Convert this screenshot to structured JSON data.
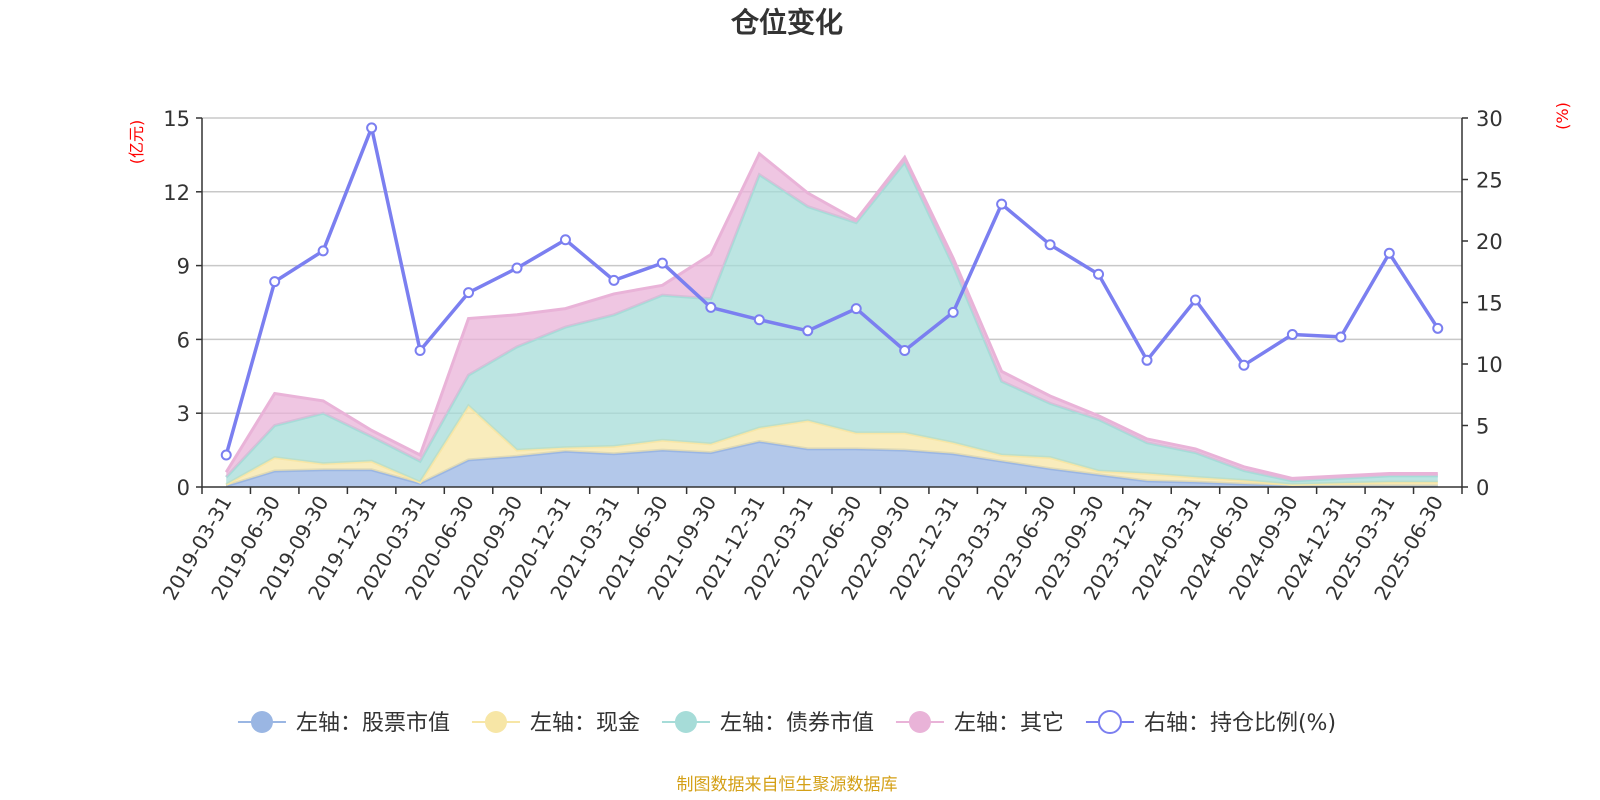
{
  "chart_data": {
    "type": "area",
    "title": "仓位变化",
    "source_note": "制图数据来自恒生聚源数据库",
    "left_axis": {
      "unit": "(亿元)",
      "min": 0,
      "max": 15,
      "ticks": [
        "0",
        "3",
        "6",
        "9",
        "12",
        "15"
      ]
    },
    "right_axis": {
      "unit": "(%)",
      "min": 0,
      "max": 30,
      "ticks": [
        "0",
        "5",
        "10",
        "15",
        "20",
        "25",
        "30"
      ]
    },
    "grid": true,
    "legend_position": "bottom",
    "categories": [
      "2019-03-31",
      "2019-06-30",
      "2019-09-30",
      "2019-12-31",
      "2020-03-31",
      "2020-06-30",
      "2020-09-30",
      "2020-12-31",
      "2021-03-31",
      "2021-06-30",
      "2021-09-30",
      "2021-12-31",
      "2022-03-31",
      "2022-06-30",
      "2022-09-30",
      "2022-12-31",
      "2023-03-31",
      "2023-06-30",
      "2023-09-30",
      "2023-12-31",
      "2024-03-31",
      "2024-06-30",
      "2024-09-30",
      "2024-12-31",
      "2025-03-31",
      "2025-06-30"
    ],
    "series": [
      {
        "name": "左轴：股票市值",
        "axis": "left",
        "stacked": true,
        "color": "#9ab6e3",
        "values": [
          0.05,
          0.65,
          0.7,
          0.7,
          0.15,
          1.1,
          1.25,
          1.45,
          1.35,
          1.5,
          1.4,
          1.85,
          1.55,
          1.55,
          1.5,
          1.35,
          1.05,
          0.75,
          0.5,
          0.25,
          0.2,
          0.12,
          0.05,
          0.05,
          0.05,
          0.05
        ]
      },
      {
        "name": "左轴：现金",
        "axis": "left",
        "stacked": true,
        "color": "#f7e6a6",
        "values": [
          0.05,
          0.55,
          0.25,
          0.35,
          0.05,
          2.2,
          0.25,
          0.15,
          0.3,
          0.4,
          0.35,
          0.55,
          1.15,
          0.65,
          0.7,
          0.45,
          0.25,
          0.45,
          0.15,
          0.3,
          0.2,
          0.15,
          0.05,
          0.1,
          0.15,
          0.15
        ]
      },
      {
        "name": "左轴：债券市值",
        "axis": "left",
        "stacked": true,
        "color": "#a6dcd8",
        "values": [
          0.3,
          1.3,
          2.05,
          1.0,
          0.85,
          1.25,
          4.2,
          4.9,
          5.35,
          5.9,
          5.9,
          10.3,
          8.7,
          8.55,
          11.0,
          7.2,
          3.0,
          2.2,
          2.1,
          1.25,
          1.0,
          0.4,
          0.15,
          0.2,
          0.25,
          0.25
        ]
      },
      {
        "name": "左轴：其它",
        "axis": "left",
        "stacked": true,
        "color": "#e9b3d8",
        "values": [
          0.2,
          1.3,
          0.5,
          0.25,
          0.25,
          2.3,
          1.3,
          0.75,
          0.85,
          0.4,
          1.8,
          0.85,
          0.55,
          0.1,
          0.2,
          0.3,
          0.4,
          0.3,
          0.15,
          0.15,
          0.15,
          0.15,
          0.1,
          0.1,
          0.1,
          0.1
        ]
      },
      {
        "name": "右轴：持仓比例(%)",
        "axis": "right",
        "type": "line",
        "color": "#7b7ff0",
        "values": [
          2.6,
          16.7,
          19.2,
          29.2,
          11.1,
          15.8,
          17.8,
          20.1,
          16.8,
          18.2,
          14.6,
          13.6,
          12.7,
          14.5,
          11.1,
          14.2,
          23.0,
          19.7,
          17.3,
          10.3,
          15.2,
          9.9,
          12.4,
          12.2,
          19.0,
          12.9
        ]
      }
    ]
  }
}
